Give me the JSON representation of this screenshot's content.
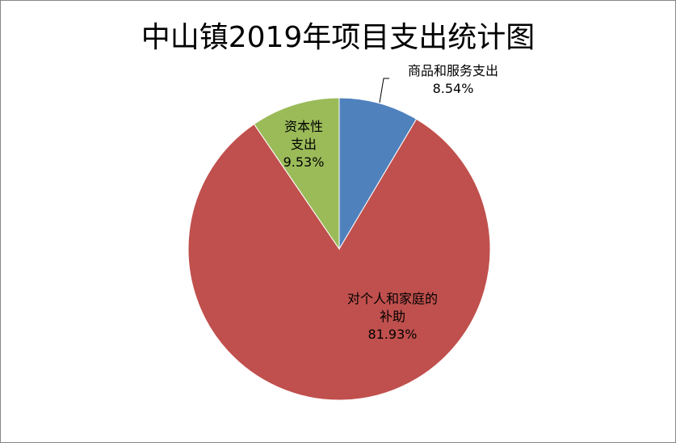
{
  "chart_data": {
    "type": "pie",
    "title": "中山镇2019年项目支出统计图",
    "slices": [
      {
        "label": "商品和服务支出",
        "value": 8.54,
        "display": "8.54%",
        "color": "#4F81BD"
      },
      {
        "label": "对个人和家庭的补助",
        "value": 81.93,
        "display": "81.93%",
        "color": "#C0504D"
      },
      {
        "label": "资本性支出",
        "value": 9.53,
        "display": "9.53%",
        "color": "#9BBB59"
      }
    ],
    "start_angle": "top",
    "direction": "clockwise"
  },
  "labels": {
    "goods_line1": "商品和服务支出",
    "personal_line1": "对个人和家庭的",
    "personal_line2": "补助",
    "capital_line1": "资本性",
    "capital_line2": "支出"
  }
}
